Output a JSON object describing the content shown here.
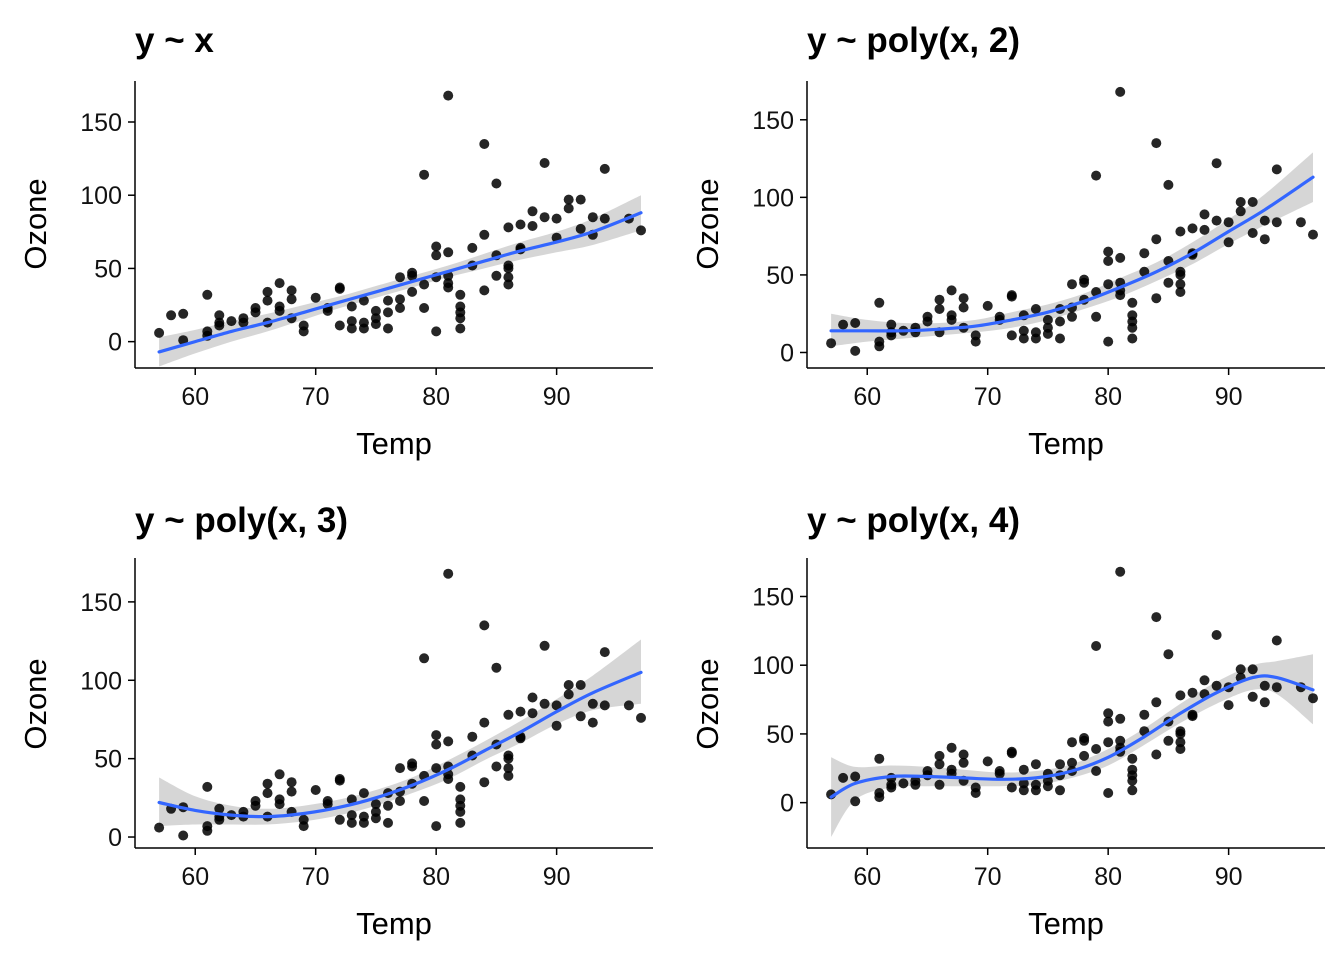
{
  "style": {
    "point_color": "#000000",
    "fit_color": "#3366FF",
    "band_color": "#999999"
  },
  "chart_data": [
    {
      "type": "scatter",
      "title": "y ~ x",
      "xlabel": "Temp",
      "ylabel": "Ozone",
      "xlim": [
        55,
        98
      ],
      "ylim": [
        -18,
        178
      ],
      "xticks": [
        "60",
        "70",
        "80",
        "90"
      ],
      "yticks": [
        "0",
        "50",
        "100",
        "150"
      ],
      "grid": false,
      "smooth": {
        "method": "lm",
        "formula": "y ~ x",
        "x": [
          57,
          60,
          63,
          66,
          69,
          72,
          75,
          78,
          81,
          84,
          87,
          90,
          93,
          97
        ],
        "y": [
          -7,
          0,
          7,
          13,
          20,
          27,
          34,
          41,
          48,
          55,
          62,
          68,
          75,
          88
        ],
        "lower": [
          -17,
          -8,
          0,
          7,
          15,
          23,
          30,
          37,
          44,
          50,
          56,
          61,
          66,
          76
        ],
        "upper": [
          3,
          8,
          14,
          19,
          25,
          31,
          38,
          45,
          52,
          60,
          68,
          75,
          84,
          100
        ]
      }
    },
    {
      "type": "scatter",
      "title": "y ~ poly(x, 2)",
      "xlabel": "Temp",
      "ylabel": "Ozone",
      "xlim": [
        55,
        98
      ],
      "ylim": [
        -10,
        175
      ],
      "xticks": [
        "60",
        "70",
        "80",
        "90"
      ],
      "yticks": [
        "0",
        "50",
        "100",
        "150"
      ],
      "grid": false,
      "smooth": {
        "method": "lm",
        "formula": "y ~ poly(x, 2)",
        "x": [
          57,
          60,
          63,
          66,
          69,
          72,
          75,
          78,
          81,
          84,
          87,
          90,
          93,
          97
        ],
        "y": [
          14,
          14,
          14,
          15,
          17,
          21,
          26,
          33,
          42,
          52,
          64,
          78,
          92,
          113
        ],
        "lower": [
          4,
          7,
          9,
          11,
          13,
          16,
          21,
          28,
          36,
          46,
          57,
          70,
          82,
          97
        ],
        "upper": [
          25,
          21,
          19,
          19,
          21,
          26,
          31,
          38,
          48,
          58,
          71,
          86,
          102,
          129
        ]
      }
    },
    {
      "type": "scatter",
      "title": "y ~ poly(x, 3)",
      "xlabel": "Temp",
      "ylabel": "Ozone",
      "xlim": [
        55,
        98
      ],
      "ylim": [
        -7,
        178
      ],
      "xticks": [
        "60",
        "70",
        "80",
        "90"
      ],
      "yticks": [
        "0",
        "50",
        "100",
        "150"
      ],
      "grid": false,
      "smooth": {
        "method": "lm",
        "formula": "y ~ poly(x, 3)",
        "x": [
          57,
          60,
          63,
          66,
          69,
          72,
          75,
          78,
          81,
          84,
          87,
          90,
          93,
          97
        ],
        "y": [
          22,
          17,
          14,
          13,
          15,
          19,
          25,
          33,
          43,
          55,
          67,
          80,
          92,
          105
        ],
        "lower": [
          7,
          8,
          8,
          8,
          10,
          14,
          20,
          28,
          37,
          49,
          60,
          72,
          81,
          85
        ],
        "upper": [
          38,
          26,
          20,
          18,
          20,
          24,
          30,
          38,
          49,
          61,
          74,
          88,
          103,
          126
        ]
      }
    },
    {
      "type": "scatter",
      "title": "y ~ poly(x, 4)",
      "xlabel": "Temp",
      "ylabel": "Ozone",
      "xlim": [
        55,
        98
      ],
      "ylim": [
        -33,
        178
      ],
      "xticks": [
        "60",
        "70",
        "80",
        "90"
      ],
      "yticks": [
        "0",
        "50",
        "100",
        "150"
      ],
      "grid": false,
      "smooth": {
        "method": "lm",
        "formula": "y ~ poly(x, 4)",
        "x": [
          57,
          59,
          62,
          65,
          68,
          71,
          74,
          77,
          80,
          83,
          86,
          89,
          92,
          94,
          97
        ],
        "y": [
          4,
          14,
          19,
          19,
          18,
          17,
          18,
          23,
          33,
          48,
          65,
          80,
          91,
          91,
          82
        ],
        "lower": [
          -25,
          2,
          11,
          12,
          12,
          12,
          13,
          18,
          27,
          42,
          58,
          72,
          82,
          79,
          57
        ],
        "upper": [
          33,
          26,
          27,
          26,
          24,
          22,
          23,
          28,
          39,
          54,
          72,
          88,
          100,
          103,
          108
        ]
      }
    }
  ],
  "points": {
    "x": [
      57,
      58,
      59,
      59,
      61,
      61,
      61,
      62,
      62,
      62,
      63,
      64,
      64,
      65,
      65,
      66,
      66,
      66,
      67,
      67,
      67,
      68,
      68,
      68,
      69,
      69,
      70,
      71,
      71,
      72,
      72,
      72,
      73,
      73,
      73,
      74,
      74,
      74,
      75,
      75,
      75,
      76,
      76,
      76,
      77,
      77,
      77,
      78,
      78,
      78,
      79,
      79,
      79,
      80,
      80,
      80,
      80,
      81,
      81,
      81,
      81,
      81,
      82,
      82,
      82,
      82,
      82,
      83,
      83,
      84,
      84,
      84,
      85,
      85,
      85,
      86,
      86,
      86,
      86,
      86,
      87,
      87,
      87,
      88,
      88,
      89,
      89,
      90,
      90,
      91,
      91,
      92,
      92,
      93,
      93,
      94,
      94,
      96,
      97
    ],
    "y": [
      6,
      18,
      1,
      19,
      32,
      7,
      4,
      18,
      13,
      11,
      14,
      13,
      16,
      23,
      20,
      28,
      34,
      13,
      40,
      24,
      21,
      16,
      29,
      35,
      11,
      7,
      30,
      23,
      21,
      36,
      11,
      37,
      9,
      14,
      24,
      28,
      9,
      13,
      16,
      21,
      12,
      28,
      20,
      9,
      44,
      23,
      29,
      47,
      45,
      34,
      114,
      39,
      23,
      65,
      7,
      59,
      44,
      168,
      45,
      40,
      37,
      61,
      9,
      16,
      20,
      24,
      32,
      64,
      52,
      135,
      35,
      73,
      108,
      45,
      59,
      78,
      39,
      52,
      44,
      50,
      80,
      63,
      64,
      79,
      89,
      122,
      85,
      71,
      84,
      97,
      91,
      97,
      77,
      85,
      73,
      118,
      84,
      84,
      76
    ]
  }
}
